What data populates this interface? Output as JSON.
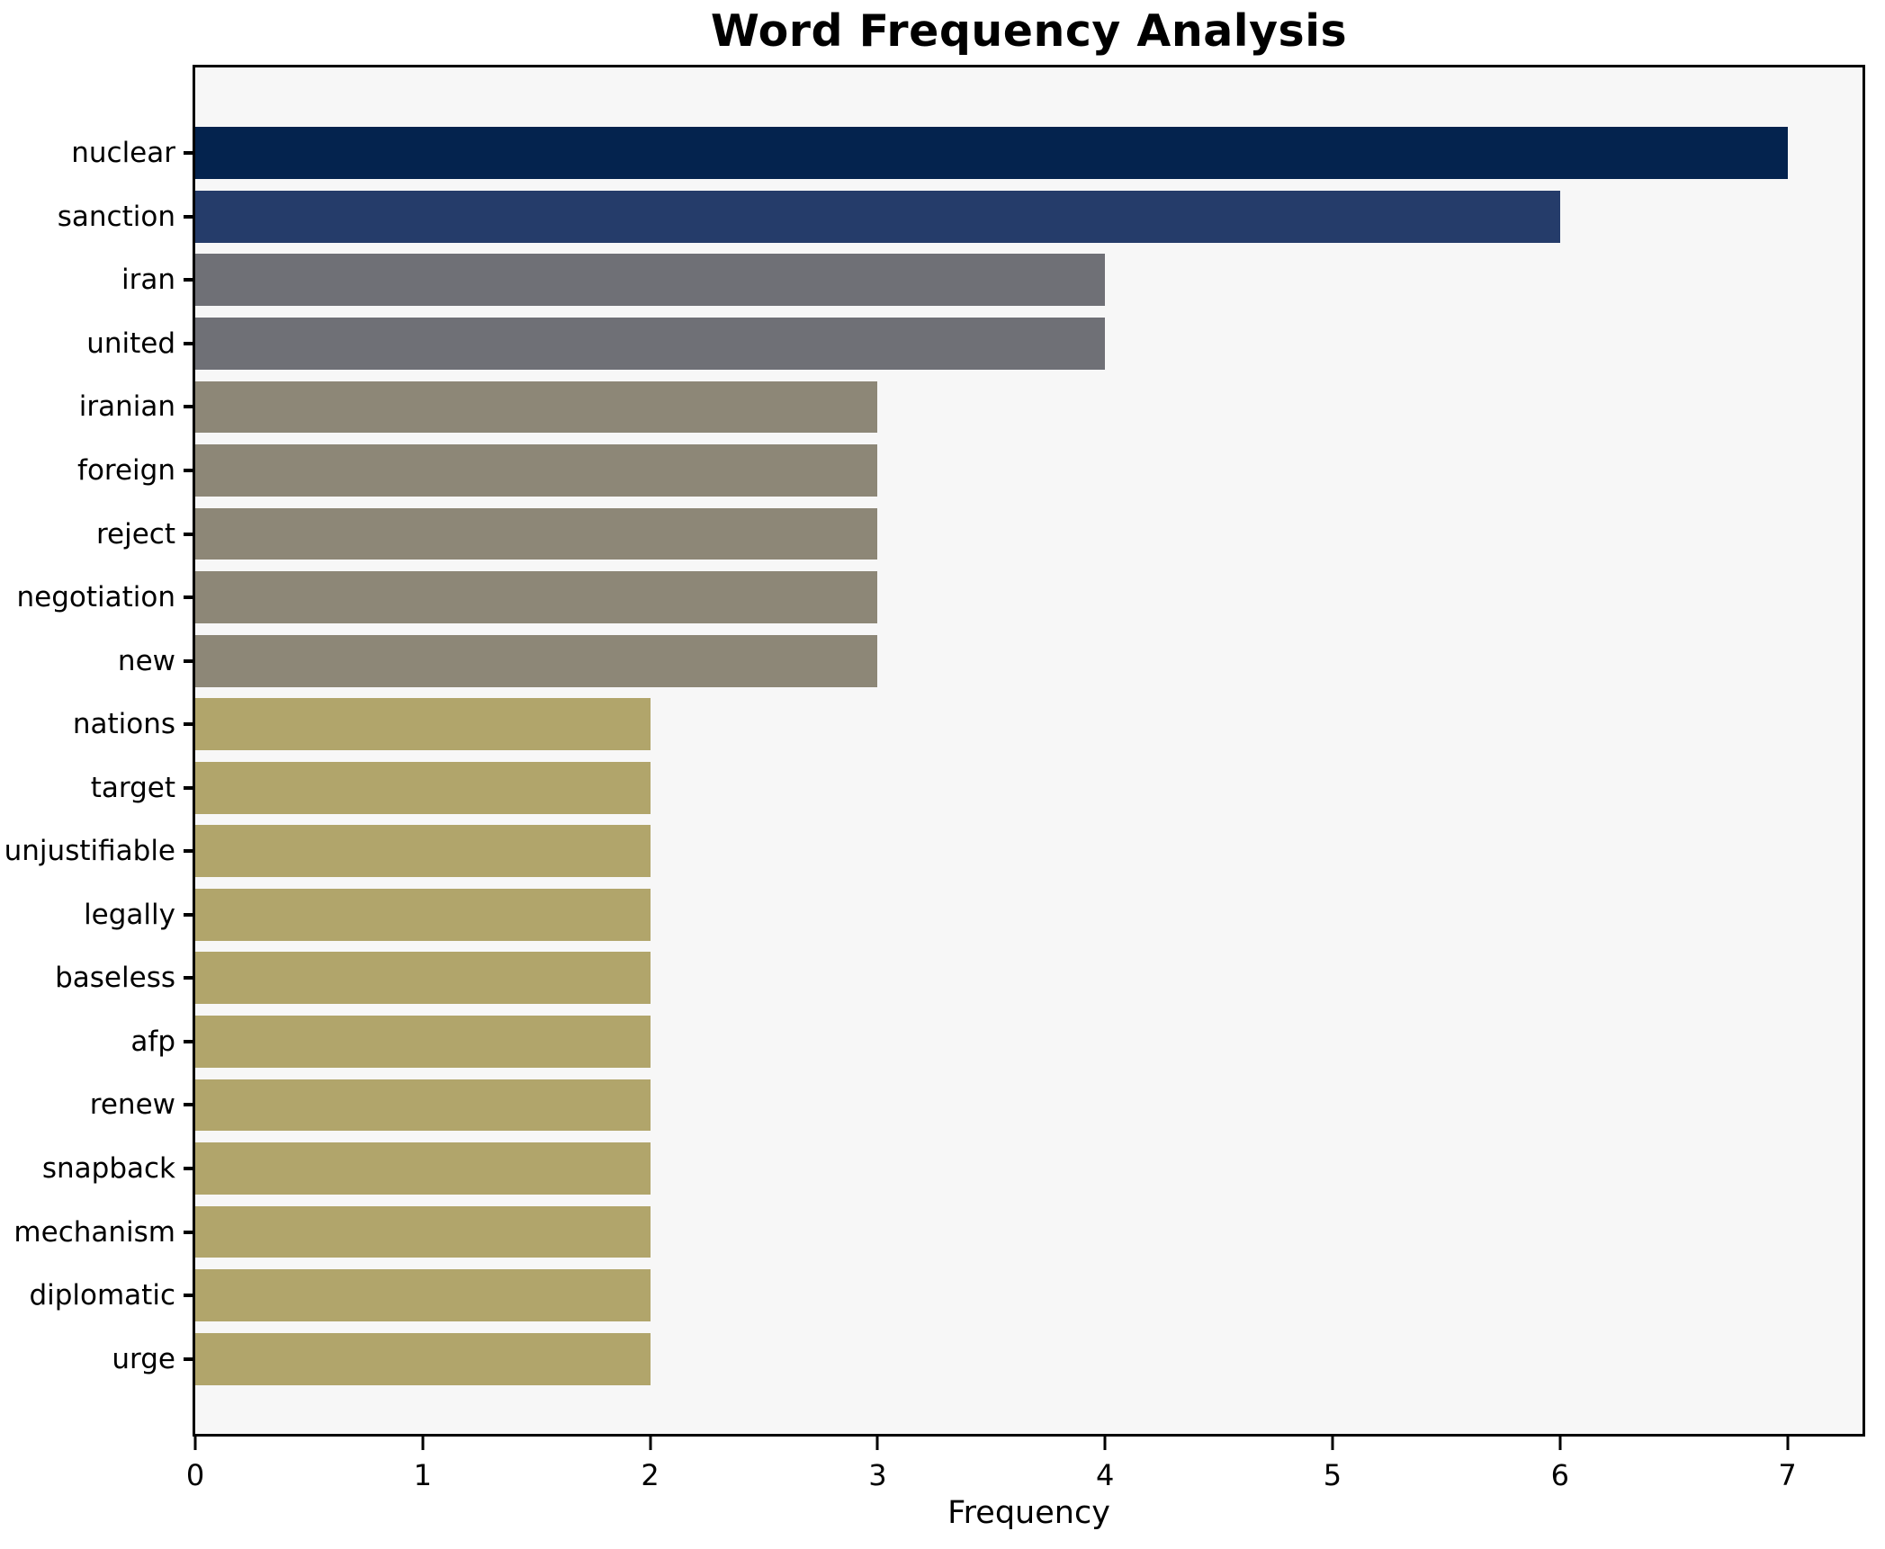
{
  "chart_data": {
    "type": "bar",
    "orientation": "horizontal",
    "title": "Word Frequency Analysis",
    "xlabel": "Frequency",
    "ylabel": "",
    "xlim": [
      0,
      7.33
    ],
    "xticks": [
      0,
      1,
      2,
      3,
      4,
      5,
      6,
      7
    ],
    "grid": false,
    "legend": "none",
    "plot_background": "#f7f7f7",
    "figure_background": "#ffffff",
    "spine_color": "#000000",
    "categories": [
      "nuclear",
      "sanction",
      "iran",
      "united",
      "iranian",
      "foreign",
      "reject",
      "negotiation",
      "new",
      "nations",
      "target",
      "unjustifiable",
      "legally",
      "baseless",
      "afp",
      "renew",
      "snapback",
      "mechanism",
      "diplomatic",
      "urge"
    ],
    "values": [
      7,
      6,
      4,
      4,
      3,
      3,
      3,
      3,
      3,
      2,
      2,
      2,
      2,
      2,
      2,
      2,
      2,
      2,
      2,
      2
    ],
    "colors": [
      "#04234e",
      "#253c6a",
      "#6f7076",
      "#6f7076",
      "#8d8777",
      "#8d8777",
      "#8d8777",
      "#8d8777",
      "#8d8777",
      "#b1a56b",
      "#b1a56b",
      "#b1a56b",
      "#b1a56b",
      "#b1a56b",
      "#b1a56b",
      "#b1a56b",
      "#b1a56b",
      "#b1a56b",
      "#b1a56b",
      "#b1a56b"
    ]
  }
}
